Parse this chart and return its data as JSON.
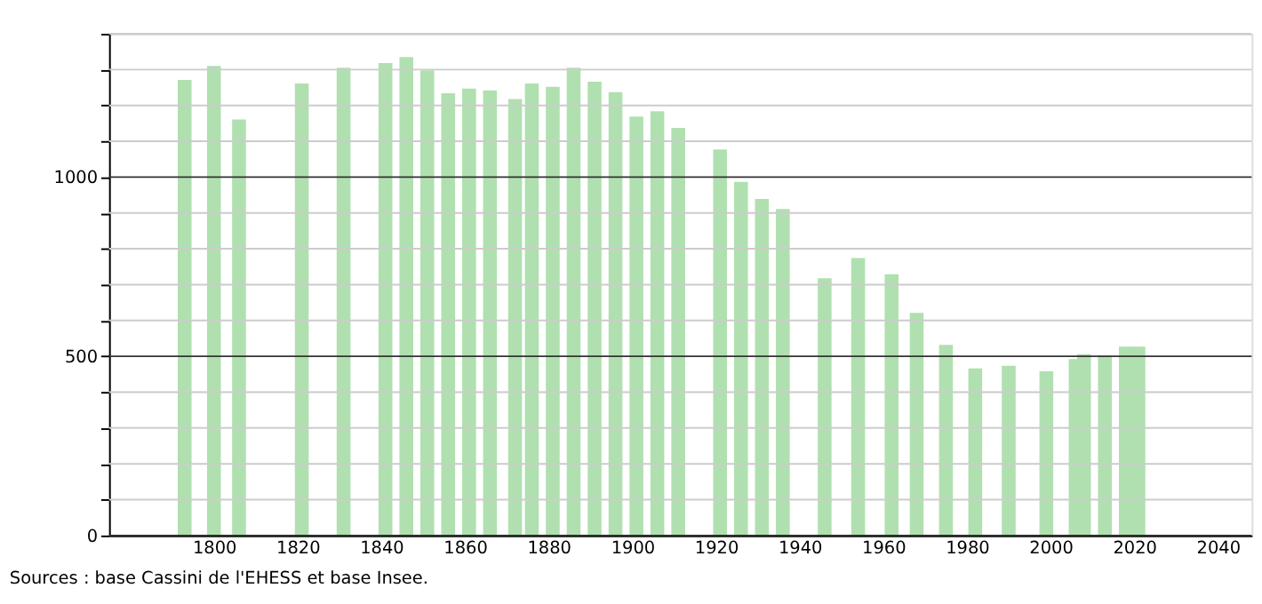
{
  "chart_data": {
    "type": "bar",
    "x": [
      1793,
      1800,
      1806,
      1821,
      1831,
      1841,
      1846,
      1851,
      1856,
      1861,
      1866,
      1872,
      1876,
      1881,
      1886,
      1891,
      1896,
      1901,
      1906,
      1911,
      1921,
      1926,
      1931,
      1936,
      1946,
      1954,
      1962,
      1968,
      1975,
      1982,
      1990,
      1999,
      2006,
      2008,
      2013,
      2018,
      2021
    ],
    "values": [
      1271,
      1310,
      1161,
      1261,
      1305,
      1318,
      1335,
      1298,
      1234,
      1247,
      1242,
      1218,
      1261,
      1252,
      1305,
      1266,
      1237,
      1169,
      1184,
      1137,
      1077,
      987,
      939,
      911,
      718,
      774,
      729,
      621,
      532,
      466,
      474,
      458,
      492,
      506,
      502,
      527,
      527
    ],
    "color": "#b0e0b0",
    "xlim": [
      1777,
      2046
    ],
    "xticks": [
      1800,
      1820,
      1840,
      1860,
      1880,
      1900,
      1920,
      1940,
      1960,
      1980,
      2000,
      2020,
      2040
    ],
    "ylim": [
      0,
      1400
    ],
    "yticks": [
      0,
      {
        "value": 100,
        "label": null
      },
      {
        "value": 200,
        "label": null
      },
      {
        "value": 300,
        "label": null
      },
      {
        "value": 400,
        "label": null
      },
      500,
      {
        "value": 600,
        "label": null
      },
      {
        "value": 700,
        "label": null
      },
      {
        "value": 800,
        "label": null
      },
      {
        "value": 900,
        "label": null
      },
      1000,
      {
        "value": 1100,
        "label": null
      },
      {
        "value": 1200,
        "label": null
      },
      {
        "value": 1300,
        "label": null
      },
      {
        "value": 1400,
        "label": null
      }
    ],
    "grid": "y",
    "annotations": [
      "Sources : base Cassini de l'EHESS et base Insee."
    ]
  }
}
